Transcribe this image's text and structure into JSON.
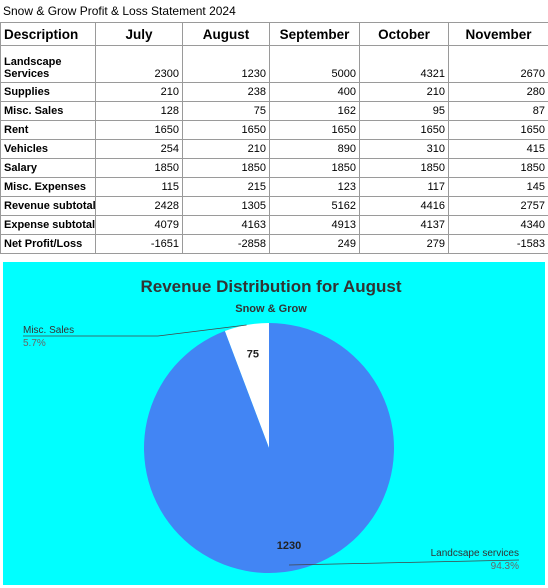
{
  "sheet": {
    "title": "Snow & Grow Profit & Loss Statement 2024",
    "headers": [
      "Description",
      "July",
      "August",
      "September",
      "October",
      "November"
    ],
    "rows": [
      {
        "label": "Landscape Services",
        "values": [
          "2300",
          "1230",
          "5000",
          "4321",
          "2670"
        ]
      },
      {
        "label": "Supplies",
        "values": [
          "210",
          "238",
          "400",
          "210",
          "280"
        ]
      },
      {
        "label": "Misc. Sales",
        "values": [
          "128",
          "75",
          "162",
          "95",
          "87"
        ]
      },
      {
        "label": "Rent",
        "values": [
          "1650",
          "1650",
          "1650",
          "1650",
          "1650"
        ]
      },
      {
        "label": "Vehicles",
        "values": [
          "254",
          "210",
          "890",
          "310",
          "415"
        ]
      },
      {
        "label": "Salary",
        "values": [
          "1850",
          "1850",
          "1850",
          "1850",
          "1850"
        ]
      },
      {
        "label": "Misc. Expenses",
        "values": [
          "115",
          "215",
          "123",
          "117",
          "145"
        ]
      },
      {
        "label": "Revenue subtotal",
        "values": [
          "2428",
          "1305",
          "5162",
          "4416",
          "2757"
        ]
      },
      {
        "label": "Expense subtotal",
        "values": [
          "4079",
          "4163",
          "4913",
          "4137",
          "4340"
        ]
      },
      {
        "label": "Net Profit/Loss",
        "values": [
          "-1651",
          "-2858",
          "249",
          "279",
          "-1583"
        ]
      }
    ]
  },
  "chart_data": {
    "type": "pie",
    "title": "Revenue Distribution for August",
    "subtitle": "Snow & Grow",
    "slices": [
      {
        "label": "Misc. Sales",
        "value": 75,
        "value_label": "75",
        "percent_label": "5.7%",
        "color": "#ffffff"
      },
      {
        "label": "Landcsape services",
        "value": 1230,
        "value_label": "1230",
        "percent_label": "94.3%",
        "color": "#4285f4"
      }
    ],
    "background": "#00ffff"
  }
}
